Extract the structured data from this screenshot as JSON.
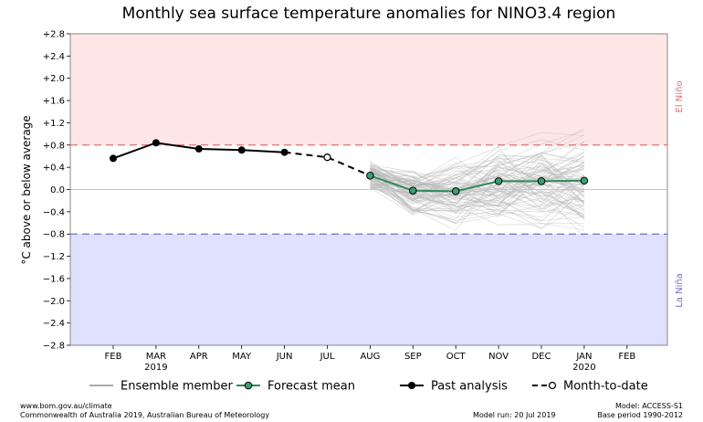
{
  "chart_data": {
    "type": "line",
    "title": "Monthly sea surface temperature anomalies for NINO3.4 region",
    "ylabel": "°C above or below average",
    "xlabel": "",
    "ylim": [
      -2.8,
      2.8
    ],
    "yticks": [
      -2.8,
      -2.4,
      -2.0,
      -1.6,
      -1.2,
      -0.8,
      -0.4,
      0.0,
      0.4,
      0.8,
      1.2,
      1.6,
      2.0,
      2.4,
      2.8
    ],
    "ytick_labels": [
      "−2.8",
      "−2.4",
      "−2.0",
      "−1.6",
      "−1.2",
      "−0.8",
      "−0.4",
      "0.0",
      "+0.4",
      "+0.8",
      "+1.2",
      "+1.6",
      "+2.0",
      "+2.4",
      "+2.8"
    ],
    "categories": [
      "FEB",
      "MAR",
      "APR",
      "MAY",
      "JUN",
      "JUL",
      "AUG",
      "SEP",
      "OCT",
      "NOV",
      "DEC",
      "JAN",
      "FEB"
    ],
    "year_labels": [
      {
        "index": 1,
        "label": "2019"
      },
      {
        "index": 11,
        "label": "2020"
      }
    ],
    "thresholds": {
      "el_nino": {
        "value": 0.8,
        "label": "El Niño",
        "color": "#e07070",
        "fill": "#ffe6e6"
      },
      "la_nina": {
        "value": -0.8,
        "label": "La Niña",
        "color": "#7070c8",
        "fill": "#e0e0ff"
      }
    },
    "series": [
      {
        "name": "Past analysis",
        "color": "#000000",
        "points": [
          [
            0,
            0.56
          ],
          [
            1,
            0.84
          ],
          [
            2,
            0.73
          ],
          [
            3,
            0.71
          ],
          [
            4,
            0.67
          ]
        ]
      },
      {
        "name": "Month-to-date",
        "color": "#000000",
        "points": [
          [
            5,
            0.58
          ]
        ]
      },
      {
        "name": "Forecast mean",
        "color": "#2e8b57",
        "points": [
          [
            6,
            0.25
          ],
          [
            7,
            -0.02
          ],
          [
            8,
            -0.03
          ],
          [
            9,
            0.15
          ],
          [
            10,
            0.15
          ],
          [
            11,
            0.16
          ]
        ]
      }
    ],
    "ensemble": {
      "name": "Ensemble member",
      "color": "#aaaaaa",
      "x_start": 6,
      "x_end": 11,
      "spread": [
        0.2,
        0.45,
        0.6,
        0.65,
        0.7,
        0.8
      ]
    },
    "legend": {
      "placement": "bottom",
      "items": [
        {
          "label": "Ensemble member",
          "style": "ensemble"
        },
        {
          "label": "Forecast mean",
          "style": "forecast"
        },
        {
          "label": "Past analysis",
          "style": "past"
        },
        {
          "label": "Month-to-date",
          "style": "mtd"
        }
      ]
    }
  },
  "footer": {
    "left_line1": "www.bom.gov.au/climate",
    "left_line2": "Commonwealth of Australia 2019, Australian Bureau of Meteorology",
    "model_run": "Model run: 20 Jul 2019",
    "model": "Model: ACCESS-S1",
    "base_period": "Base period 1990-2012"
  }
}
